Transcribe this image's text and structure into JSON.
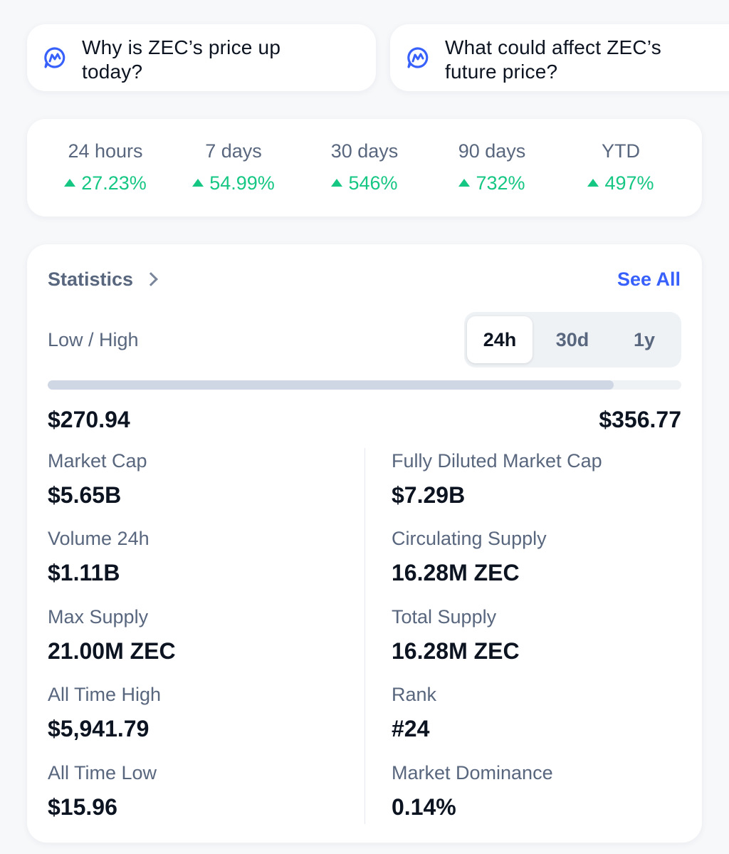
{
  "prompts": [
    {
      "text": "Why is ZEC’s price up today?"
    },
    {
      "text": "What could affect ZEC’s future price?"
    }
  ],
  "performance": [
    {
      "period": "24 hours",
      "change": "27.23%",
      "direction": "up"
    },
    {
      "period": "7 days",
      "change": "54.99%",
      "direction": "up"
    },
    {
      "period": "30 days",
      "change": "546%",
      "direction": "up"
    },
    {
      "period": "90 days",
      "change": "732%",
      "direction": "up"
    },
    {
      "period": "YTD",
      "change": "497%",
      "direction": "up"
    }
  ],
  "statistics": {
    "title": "Statistics",
    "see_all": "See All",
    "low_high_label": "Low / High",
    "range_tabs": [
      {
        "label": "24h",
        "active": true
      },
      {
        "label": "30d",
        "active": false
      },
      {
        "label": "1y",
        "active": false
      }
    ],
    "low": "$270.94",
    "high": "$356.77",
    "range_position": 0.893,
    "metrics_left": [
      {
        "label": "Market Cap",
        "value": "$5.65B"
      },
      {
        "label": "Volume 24h",
        "value": "$1.11B"
      },
      {
        "label": "Max Supply",
        "value": "21.00M ZEC"
      },
      {
        "label": "All Time High",
        "value": "$5,941.79"
      },
      {
        "label": "All Time Low",
        "value": "$15.96"
      }
    ],
    "metrics_right": [
      {
        "label": "Fully Diluted Market Cap",
        "value": "$7.29B"
      },
      {
        "label": "Circulating Supply",
        "value": "16.28M ZEC"
      },
      {
        "label": "Total Supply",
        "value": "16.28M ZEC"
      },
      {
        "label": "Rank",
        "value": "#24"
      },
      {
        "label": "Market Dominance",
        "value": "0.14%"
      }
    ]
  },
  "colors": {
    "positive": "#16c784",
    "link": "#3861fb",
    "ai_icon": "#3861fb"
  }
}
